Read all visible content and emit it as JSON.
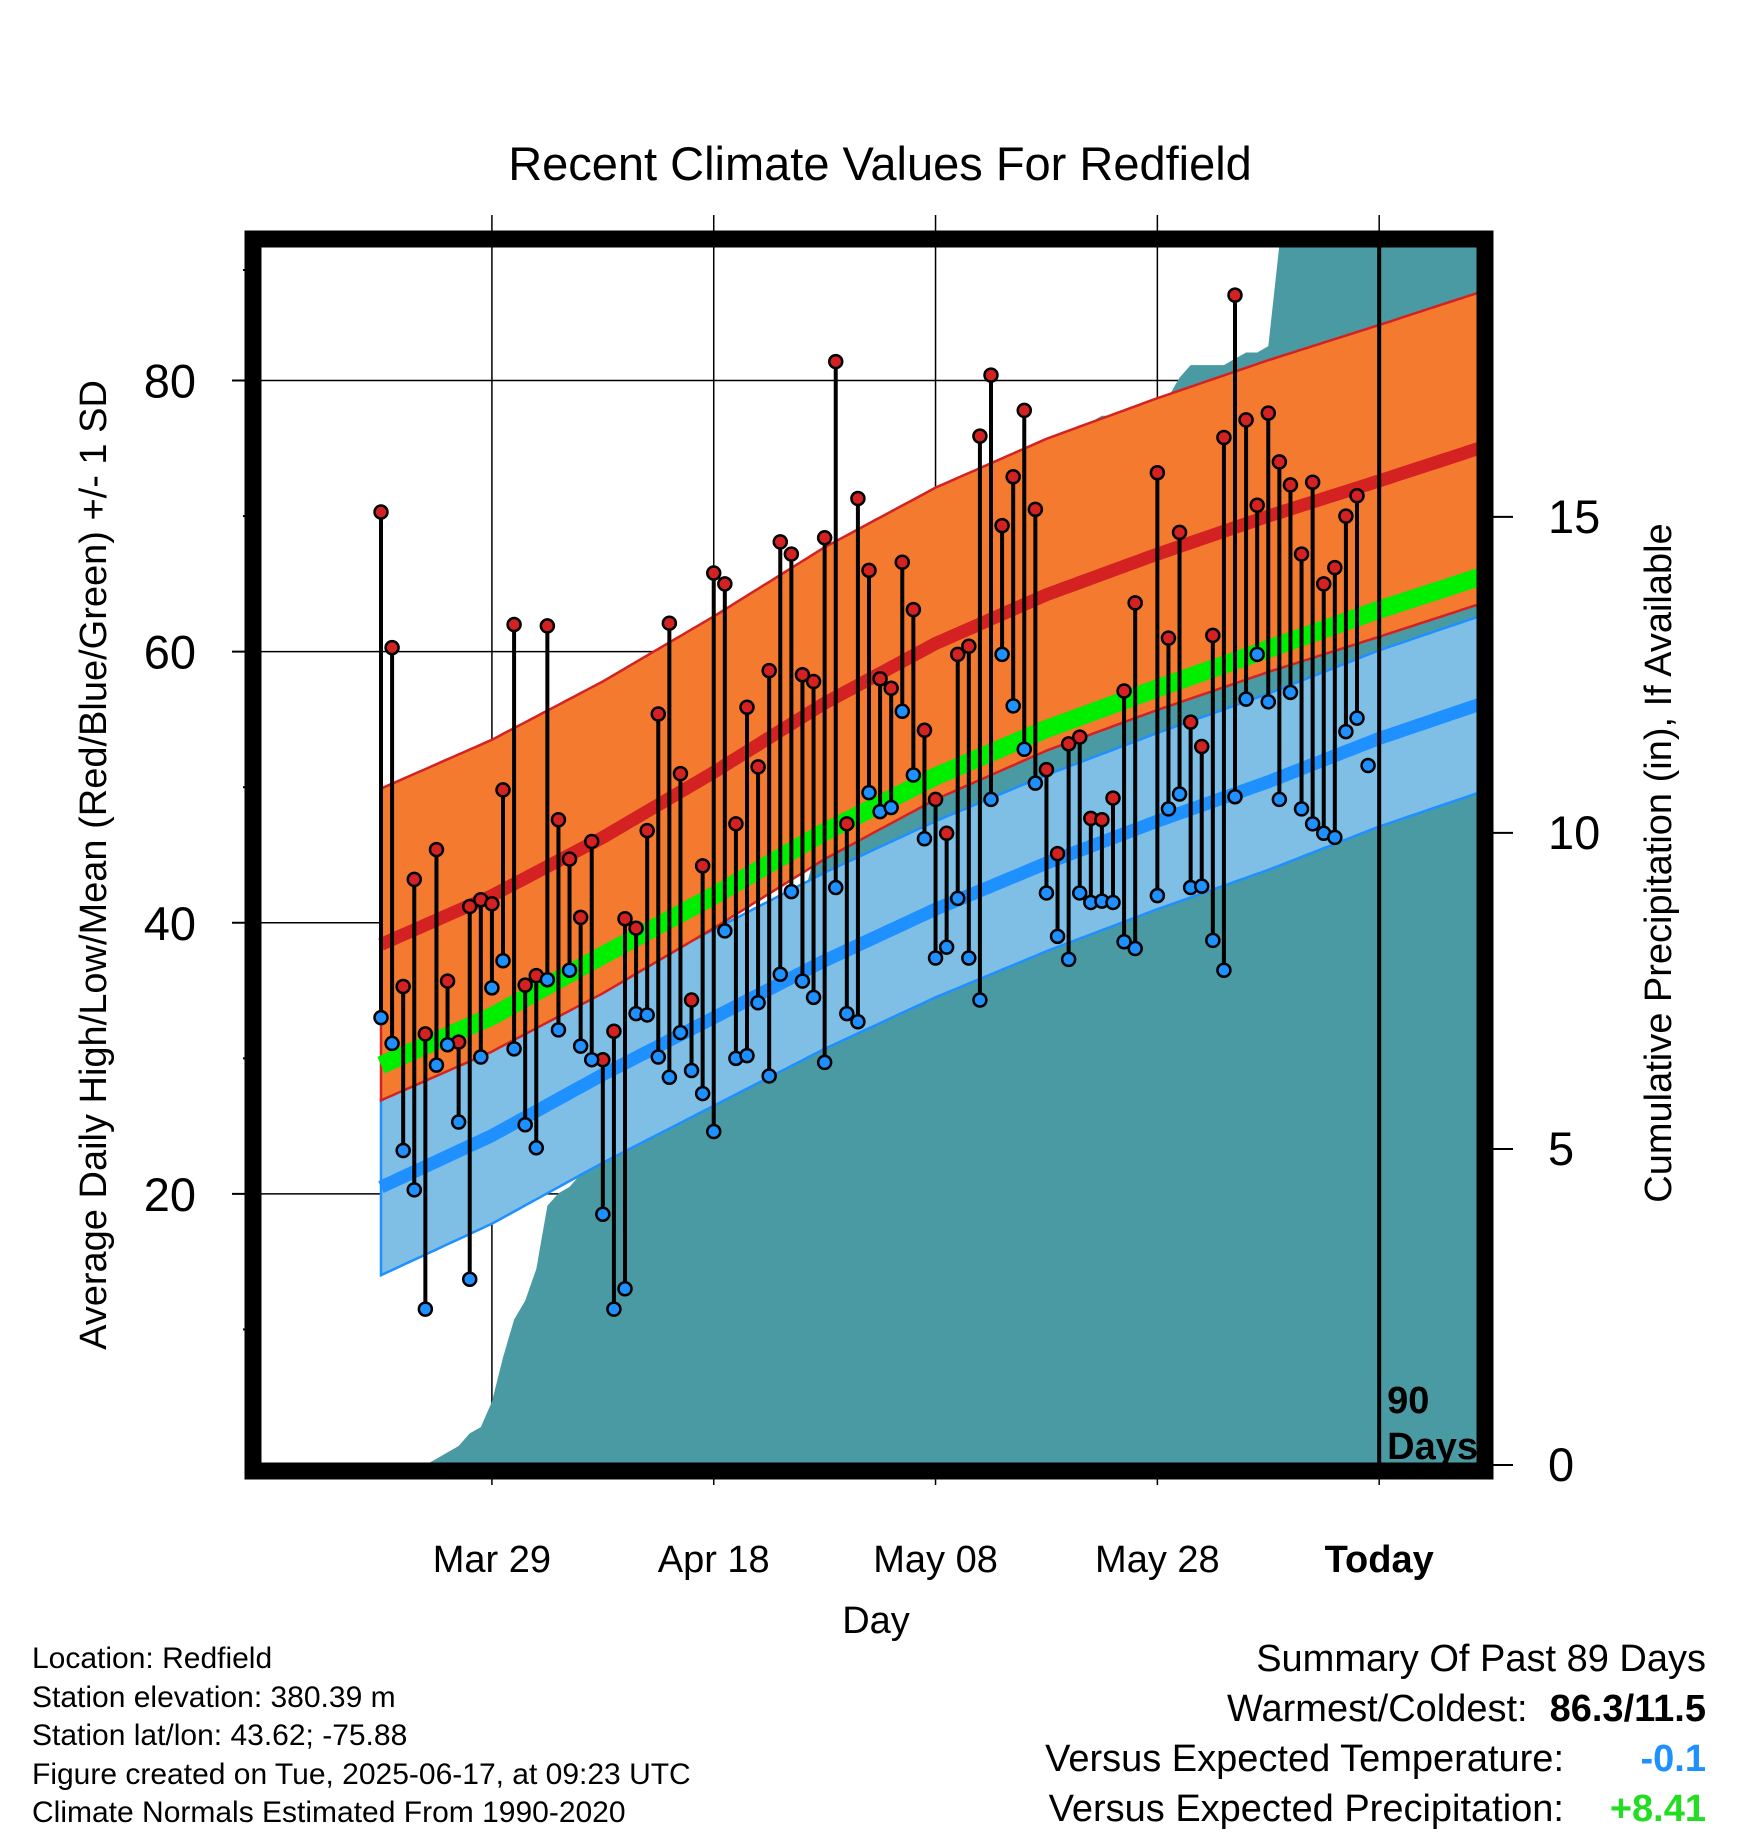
{
  "chart_data": {
    "type": "line",
    "title": "Recent Climate Values For Redfield",
    "xlabel": "Day",
    "ylabel": "Average Daily High/Low/Mean (Red/Blue/Green) +/- 1 SD",
    "y2label": "Cumulative Precipitation (in), If Available",
    "x_range_days": [
      -101,
      -89,
      9
    ],
    "ylim": [
      0,
      90
    ],
    "y2lim": [
      0,
      19.3
    ],
    "yticks": [
      "20",
      "40",
      "60",
      "80"
    ],
    "y2ticks": [
      "0",
      "5",
      "10",
      "15"
    ],
    "xticks": [
      {
        "day": -80,
        "label": "Mar 29"
      },
      {
        "day": -60,
        "label": "Apr 18"
      },
      {
        "day": -40,
        "label": "May 08"
      },
      {
        "day": -20,
        "label": "May 28"
      },
      {
        "day": 0,
        "label": "Today"
      }
    ],
    "today_label": "90\nDays",
    "grid": true,
    "colors": {
      "high_band": "#f47a30",
      "high_mean": "#d42222",
      "low_band": "#7fbfe6",
      "low_mean": "#1e90ff",
      "mean": "#00ee00",
      "precip": "#4a9aa4",
      "high_marker": "#d42222",
      "low_marker": "#1e90ff"
    },
    "normals": {
      "days": [
        -90,
        -80,
        -70,
        -60,
        -50,
        -40,
        -30,
        -20,
        -10,
        0,
        9
      ],
      "high_mean": [
        38.4,
        42.0,
        46.3,
        51.1,
        56.2,
        60.6,
        64.2,
        67.2,
        70.0,
        72.6,
        75.0
      ],
      "high_sd": 11.5,
      "low_mean": [
        20.5,
        24.3,
        28.8,
        33.0,
        37.2,
        41.0,
        44.4,
        47.5,
        50.4,
        53.6,
        56.1
      ],
      "low_sd": 6.5,
      "avg_mean": [
        29.5,
        33.1,
        37.6,
        42.0,
        46.7,
        50.8,
        54.3,
        57.3,
        60.2,
        63.1,
        65.5
      ]
    },
    "series": [
      {
        "name": "High",
        "days": [
          -90,
          -89,
          -88,
          -87,
          -86,
          -85,
          -84,
          -83,
          -82,
          -81,
          -80,
          -79,
          -78,
          -77,
          -76,
          -75,
          -74,
          -73,
          -72,
          -71,
          -70,
          -69,
          -68,
          -67,
          -66,
          -65,
          -64,
          -63,
          -62,
          -61,
          -60,
          -59,
          -58,
          -57,
          -56,
          -55,
          -54,
          -53,
          -52,
          -51,
          -50,
          -49,
          -48,
          -47,
          -46,
          -45,
          -44,
          -43,
          -42,
          -41,
          -40,
          -39,
          -38,
          -37,
          -36,
          -35,
          -34,
          -33,
          -32,
          -31,
          -30,
          -29,
          -28,
          -27,
          -26,
          -25,
          -24,
          -23,
          -22,
          -21,
          -20,
          -19,
          -18,
          -17,
          -16,
          -15,
          -14,
          -13,
          -12,
          -11,
          -10,
          -9,
          -8,
          -7,
          -6,
          -5,
          -4,
          -3,
          -2
        ],
        "values": [
          70.3,
          60.3,
          35.3,
          43.2,
          31.8,
          45.4,
          35.7,
          31.2,
          41.2,
          41.7,
          41.4,
          49.8,
          62.0,
          35.4,
          36.1,
          61.9,
          47.6,
          44.7,
          40.4,
          46.0,
          29.9,
          32.0,
          40.3,
          39.6,
          46.8,
          55.4,
          62.1,
          51.0,
          34.3,
          44.2,
          65.8,
          65.0,
          47.3,
          55.9,
          51.5,
          58.6,
          68.1,
          67.2,
          58.3,
          57.8,
          68.4,
          81.4,
          47.3,
          71.3,
          66.0,
          58.0,
          57.3,
          66.6,
          63.1,
          54.2,
          49.1,
          46.6,
          59.8,
          60.4,
          75.9,
          80.4,
          69.3,
          72.9,
          77.8,
          70.5,
          51.3,
          45.1,
          53.2,
          53.7,
          47.7,
          47.6,
          49.2,
          57.1,
          63.6,
          null,
          73.2,
          61.0,
          68.8,
          54.8,
          53.0,
          61.2,
          75.8,
          86.3,
          77.1,
          70.8,
          77.6,
          74.0,
          72.3,
          67.2,
          72.5,
          65.0,
          66.2,
          70.0,
          71.5
        ]
      },
      {
        "name": "Low",
        "days": [
          -90,
          -89,
          -88,
          -87,
          -86,
          -85,
          -84,
          -83,
          -82,
          -81,
          -80,
          -79,
          -78,
          -77,
          -76,
          -75,
          -74,
          -73,
          -72,
          -71,
          -70,
          -69,
          -68,
          -67,
          -66,
          -65,
          -64,
          -63,
          -62,
          -61,
          -60,
          -59,
          -58,
          -57,
          -56,
          -55,
          -54,
          -53,
          -52,
          -51,
          -50,
          -49,
          -48,
          -47,
          -46,
          -45,
          -44,
          -43,
          -42,
          -41,
          -40,
          -39,
          -38,
          -37,
          -36,
          -35,
          -34,
          -33,
          -32,
          -31,
          -30,
          -29,
          -28,
          -27,
          -26,
          -25,
          -24,
          -23,
          -22,
          -21,
          -20,
          -19,
          -18,
          -17,
          -16,
          -15,
          -14,
          -13,
          -12,
          -11,
          -10,
          -9,
          -8,
          -7,
          -6,
          -5,
          -4,
          -3,
          -2,
          -1
        ],
        "values": [
          33.0,
          31.1,
          23.2,
          20.3,
          11.5,
          29.5,
          31.0,
          25.3,
          13.7,
          30.1,
          35.2,
          37.2,
          30.7,
          25.1,
          23.4,
          35.8,
          32.1,
          36.5,
          30.9,
          29.9,
          18.5,
          11.5,
          13.0,
          33.3,
          33.2,
          30.1,
          28.6,
          31.9,
          29.1,
          27.4,
          24.6,
          39.4,
          30.0,
          30.2,
          34.1,
          28.7,
          36.2,
          42.3,
          35.7,
          34.5,
          29.7,
          42.6,
          33.3,
          32.7,
          49.6,
          48.2,
          48.5,
          55.6,
          50.9,
          46.2,
          37.4,
          38.2,
          41.8,
          37.4,
          34.3,
          49.1,
          59.8,
          56.0,
          52.8,
          50.3,
          42.2,
          39.0,
          37.3,
          42.2,
          41.5,
          41.6,
          41.5,
          38.6,
          38.1,
          null,
          42.0,
          48.4,
          49.5,
          42.6,
          42.7,
          38.7,
          36.5,
          49.3,
          56.5,
          59.8,
          56.3,
          49.1,
          57.0,
          48.4,
          47.3,
          46.6,
          46.3,
          54.1,
          55.1,
          51.6
        ]
      }
    ],
    "precip": {
      "days": [
        -90,
        -87,
        -86,
        -85,
        -84,
        -83,
        -82,
        -81,
        -80,
        -79,
        -78,
        -77,
        -76,
        -75,
        -74,
        -73,
        -72,
        -71,
        -70,
        -69,
        -68,
        -67,
        -66,
        -65,
        -64,
        -63,
        -62,
        -61,
        -60,
        -59,
        -58,
        -57,
        -56,
        -55,
        -54,
        -53,
        -52,
        -51,
        -50,
        -49,
        -48,
        -47,
        -46,
        -45,
        -44,
        -43,
        -42,
        -41,
        -40,
        -39,
        -38,
        -37,
        -36,
        -35,
        -34,
        -33,
        -32,
        -31,
        -30,
        -29,
        -28,
        -27,
        -26,
        -25,
        -24,
        -23,
        -22,
        -21,
        -20,
        -19,
        -18,
        -17,
        -16,
        -15,
        -14,
        -13,
        -12,
        -11,
        -10,
        -9,
        -8,
        -7,
        -6,
        -5,
        -4,
        -3,
        -2,
        -1,
        0,
        9
      ],
      "values": [
        0,
        0,
        0,
        0.1,
        0.2,
        0.3,
        0.5,
        0.6,
        1.0,
        1.7,
        2.3,
        2.6,
        3.1,
        4.1,
        4.3,
        4.4,
        4.6,
        5.1,
        5.2,
        5.4,
        5.6,
        5.6,
        5.6,
        5.6,
        5.6,
        5.9,
        6.0,
        6.0,
        6.0,
        7.3,
        7.5,
        7.8,
        7.8,
        7.9,
        7.9,
        8.0,
        8.9,
        9.6,
        9.7,
        9.7,
        9.8,
        9.9,
        10.2,
        10.7,
        10.9,
        11.4,
        12.4,
        13.0,
        13.1,
        13.3,
        13.4,
        13.4,
        13.4,
        13.4,
        13.4,
        13.4,
        13.4,
        14.6,
        15.6,
        15.6,
        15.8,
        16.1,
        16.5,
        16.6,
        16.6,
        16.6,
        16.6,
        16.6,
        16.7,
        16.9,
        17.2,
        17.4,
        17.4,
        17.4,
        17.4,
        17.5,
        17.6,
        17.6,
        17.7,
        19.3,
        19.4,
        19.4,
        19.4,
        19.4,
        19.4,
        19.4,
        19.4,
        19.4,
        19.4,
        19.4
      ]
    }
  },
  "footer": {
    "location": "Location: Redfield",
    "elevation": "Station elevation: 380.39 m",
    "latlon": "Station lat/lon: 43.62; -75.88",
    "created": "Figure created on Tue, 2025-06-17, at 09:23 UTC",
    "normals": "Climate Normals Estimated From 1990-2020"
  },
  "summary": {
    "heading": "Summary Of Past 89 Days",
    "warmest_coldest_label": "Warmest/Coldest:",
    "warmest_coldest_value": "86.3/11.5",
    "temp_label": "Versus Expected Temperature:",
    "temp_value": "-0.1",
    "temp_color": "#1e90ff",
    "precip_label": "Versus Expected Precipitation:",
    "precip_value": "+8.41",
    "precip_color": "#22dd22"
  }
}
